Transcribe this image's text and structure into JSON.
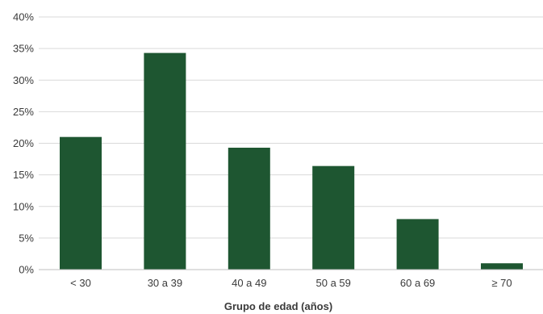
{
  "chart_data": {
    "type": "bar",
    "categories": [
      "< 30",
      "30 a 39",
      "40 a 49",
      "50 a 59",
      "60 a 69",
      "≥ 70"
    ],
    "values": [
      21,
      34.3,
      19.3,
      16.4,
      8,
      1
    ],
    "title": "",
    "xlabel": "Grupo de edad (años)",
    "ylabel": "",
    "ylim": [
      0,
      40
    ],
    "yticks": [
      0,
      5,
      10,
      15,
      20,
      25,
      30,
      35,
      40
    ],
    "ytick_format": "percent",
    "grid": true,
    "legend": "none",
    "bar_color": "#1e5631",
    "grid_color": "#d9d9d9"
  }
}
